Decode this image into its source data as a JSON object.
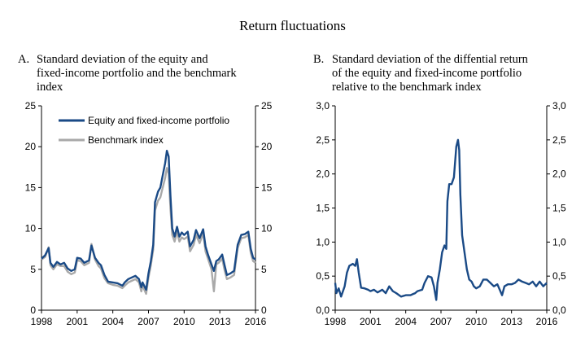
{
  "title": "Return fluctuations",
  "colors": {
    "equity": "#1a4a86",
    "benchmark": "#a9a9a9",
    "axis": "#000000"
  },
  "panels": {
    "a": {
      "letter": "A.",
      "title_lines": [
        "Standard deviation of the equity and",
        "fixed-income portfolio and the benchmark",
        "index"
      ]
    },
    "b": {
      "letter": "B.",
      "title_lines": [
        "Standard deviation of the diffential return",
        "of the equity and fixed-income portfolio",
        "relative to the benchmark index"
      ]
    }
  },
  "chart_data": [
    {
      "type": "line",
      "panel": "A",
      "xlim": [
        1998,
        2016
      ],
      "ylim": [
        0,
        25
      ],
      "x_ticks": [
        "1998",
        "2001",
        "2004",
        "2007",
        "2010",
        "2013",
        "2016"
      ],
      "y_ticks_left": [
        "0",
        "5",
        "10",
        "15",
        "20",
        "25"
      ],
      "y_ticks_right": [
        "0",
        "5",
        "10",
        "15",
        "20",
        "25"
      ],
      "legend": "top-left",
      "series": [
        {
          "name": "Equity and fixed-income portfolio",
          "color": "#1a4a86",
          "points": [
            [
              1998.0,
              6.3
            ],
            [
              1998.3,
              6.7
            ],
            [
              1998.6,
              7.6
            ],
            [
              1998.75,
              5.8
            ],
            [
              1999.0,
              5.3
            ],
            [
              1999.3,
              5.9
            ],
            [
              1999.6,
              5.6
            ],
            [
              1999.9,
              5.8
            ],
            [
              2000.2,
              5.1
            ],
            [
              2000.5,
              4.8
            ],
            [
              2000.8,
              5.0
            ],
            [
              2001.0,
              6.4
            ],
            [
              2001.3,
              6.3
            ],
            [
              2001.6,
              5.8
            ],
            [
              2002.0,
              6.1
            ],
            [
              2002.2,
              7.9
            ],
            [
              2002.5,
              6.4
            ],
            [
              2002.8,
              5.8
            ],
            [
              2003.0,
              5.5
            ],
            [
              2003.3,
              4.3
            ],
            [
              2003.6,
              3.5
            ],
            [
              2004.0,
              3.4
            ],
            [
              2004.4,
              3.3
            ],
            [
              2004.8,
              3.0
            ],
            [
              2005.0,
              3.4
            ],
            [
              2005.3,
              3.8
            ],
            [
              2005.6,
              4.0
            ],
            [
              2005.9,
              4.2
            ],
            [
              2006.2,
              3.8
            ],
            [
              2006.4,
              2.8
            ],
            [
              2006.5,
              3.4
            ],
            [
              2006.8,
              2.5
            ],
            [
              2007.0,
              4.5
            ],
            [
              2007.2,
              6.0
            ],
            [
              2007.4,
              8.0
            ],
            [
              2007.55,
              13.2
            ],
            [
              2007.8,
              14.5
            ],
            [
              2008.0,
              15.0
            ],
            [
              2008.2,
              16.5
            ],
            [
              2008.4,
              18.0
            ],
            [
              2008.55,
              19.5
            ],
            [
              2008.7,
              18.8
            ],
            [
              2008.85,
              14.0
            ],
            [
              2009.0,
              10.0
            ],
            [
              2009.2,
              9.0
            ],
            [
              2009.4,
              10.2
            ],
            [
              2009.6,
              9.0
            ],
            [
              2009.8,
              9.5
            ],
            [
              2010.0,
              9.2
            ],
            [
              2010.3,
              9.6
            ],
            [
              2010.5,
              7.8
            ],
            [
              2010.8,
              8.6
            ],
            [
              2011.0,
              9.8
            ],
            [
              2011.3,
              8.8
            ],
            [
              2011.6,
              9.9
            ],
            [
              2011.8,
              7.8
            ],
            [
              2012.0,
              6.8
            ],
            [
              2012.3,
              5.6
            ],
            [
              2012.5,
              4.8
            ],
            [
              2012.7,
              6.0
            ],
            [
              2012.9,
              6.2
            ],
            [
              2013.2,
              6.8
            ],
            [
              2013.4,
              5.5
            ],
            [
              2013.6,
              4.3
            ],
            [
              2013.9,
              4.5
            ],
            [
              2014.2,
              4.8
            ],
            [
              2014.5,
              8.0
            ],
            [
              2014.8,
              9.2
            ],
            [
              2015.1,
              9.3
            ],
            [
              2015.4,
              9.6
            ],
            [
              2015.6,
              7.5
            ],
            [
              2015.8,
              6.4
            ],
            [
              2016.0,
              6.2
            ]
          ]
        },
        {
          "name": "Benchmark index",
          "color": "#a9a9a9",
          "points": [
            [
              1998.0,
              6.2
            ],
            [
              1998.3,
              6.5
            ],
            [
              1998.6,
              7.7
            ],
            [
              1998.75,
              5.5
            ],
            [
              1999.0,
              5.0
            ],
            [
              1999.3,
              5.6
            ],
            [
              1999.6,
              5.4
            ],
            [
              1999.9,
              5.4
            ],
            [
              2000.2,
              4.7
            ],
            [
              2000.5,
              4.4
            ],
            [
              2000.8,
              4.6
            ],
            [
              2001.0,
              6.1
            ],
            [
              2001.3,
              6.0
            ],
            [
              2001.6,
              5.5
            ],
            [
              2002.0,
              5.8
            ],
            [
              2002.2,
              8.1
            ],
            [
              2002.5,
              6.2
            ],
            [
              2002.8,
              5.4
            ],
            [
              2003.0,
              5.1
            ],
            [
              2003.3,
              3.9
            ],
            [
              2003.6,
              3.3
            ],
            [
              2004.0,
              3.1
            ],
            [
              2004.4,
              3.0
            ],
            [
              2004.8,
              2.7
            ],
            [
              2005.0,
              3.0
            ],
            [
              2005.3,
              3.4
            ],
            [
              2005.6,
              3.6
            ],
            [
              2005.9,
              3.8
            ],
            [
              2006.2,
              3.4
            ],
            [
              2006.4,
              2.3
            ],
            [
              2006.5,
              3.0
            ],
            [
              2006.8,
              2.0
            ],
            [
              2007.0,
              4.0
            ],
            [
              2007.2,
              5.5
            ],
            [
              2007.4,
              7.4
            ],
            [
              2007.55,
              12.2
            ],
            [
              2007.8,
              13.4
            ],
            [
              2008.0,
              13.8
            ],
            [
              2008.2,
              15.0
            ],
            [
              2008.4,
              16.2
            ],
            [
              2008.55,
              17.4
            ],
            [
              2008.7,
              16.7
            ],
            [
              2008.85,
              12.4
            ],
            [
              2009.0,
              9.2
            ],
            [
              2009.2,
              8.4
            ],
            [
              2009.4,
              9.6
            ],
            [
              2009.6,
              8.4
            ],
            [
              2009.8,
              8.9
            ],
            [
              2010.0,
              8.7
            ],
            [
              2010.3,
              9.0
            ],
            [
              2010.5,
              7.2
            ],
            [
              2010.8,
              8.0
            ],
            [
              2011.0,
              9.2
            ],
            [
              2011.3,
              8.2
            ],
            [
              2011.6,
              9.4
            ],
            [
              2011.8,
              7.2
            ],
            [
              2012.0,
              6.3
            ],
            [
              2012.3,
              5.0
            ],
            [
              2012.5,
              2.3
            ],
            [
              2012.7,
              5.6
            ],
            [
              2012.9,
              5.8
            ],
            [
              2013.2,
              6.3
            ],
            [
              2013.4,
              4.9
            ],
            [
              2013.6,
              3.8
            ],
            [
              2013.9,
              4.0
            ],
            [
              2014.2,
              4.3
            ],
            [
              2014.5,
              7.6
            ],
            [
              2014.8,
              8.8
            ],
            [
              2015.1,
              8.9
            ],
            [
              2015.4,
              9.2
            ],
            [
              2015.6,
              7.0
            ],
            [
              2015.8,
              6.0
            ],
            [
              2016.0,
              5.8
            ]
          ]
        }
      ]
    },
    {
      "type": "line",
      "panel": "B",
      "xlim": [
        1998,
        2016
      ],
      "ylim": [
        0,
        3
      ],
      "x_ticks": [
        "1998",
        "2001",
        "2004",
        "2007",
        "2010",
        "2013",
        "2016"
      ],
      "y_ticks_left": [
        "0,0",
        "0,5",
        "1,0",
        "1,5",
        "2,0",
        "2,5",
        "3,0"
      ],
      "y_ticks_right": [
        "0,0",
        "0,5",
        "1,0",
        "1,5",
        "2,0",
        "2,5",
        "3,0"
      ],
      "series": [
        {
          "color": "#1a4a86",
          "points": [
            [
              1998.0,
              0.4
            ],
            [
              1998.1,
              0.25
            ],
            [
              1998.3,
              0.32
            ],
            [
              1998.5,
              0.2
            ],
            [
              1998.8,
              0.35
            ],
            [
              1999.0,
              0.55
            ],
            [
              1999.2,
              0.65
            ],
            [
              1999.5,
              0.68
            ],
            [
              1999.7,
              0.65
            ],
            [
              1999.85,
              0.75
            ],
            [
              2000.0,
              0.55
            ],
            [
              2000.2,
              0.33
            ],
            [
              2000.5,
              0.32
            ],
            [
              2000.8,
              0.3
            ],
            [
              2001.0,
              0.28
            ],
            [
              2001.3,
              0.3
            ],
            [
              2001.6,
              0.26
            ],
            [
              2002.0,
              0.3
            ],
            [
              2002.3,
              0.25
            ],
            [
              2002.6,
              0.35
            ],
            [
              2002.9,
              0.28
            ],
            [
              2003.2,
              0.25
            ],
            [
              2003.6,
              0.2
            ],
            [
              2004.0,
              0.22
            ],
            [
              2004.4,
              0.22
            ],
            [
              2004.8,
              0.25
            ],
            [
              2005.0,
              0.28
            ],
            [
              2005.4,
              0.3
            ],
            [
              2005.6,
              0.4
            ],
            [
              2005.9,
              0.5
            ],
            [
              2006.2,
              0.48
            ],
            [
              2006.4,
              0.35
            ],
            [
              2006.6,
              0.15
            ],
            [
              2006.7,
              0.4
            ],
            [
              2006.9,
              0.6
            ],
            [
              2007.1,
              0.85
            ],
            [
              2007.3,
              0.95
            ],
            [
              2007.45,
              0.9
            ],
            [
              2007.55,
              1.6
            ],
            [
              2007.7,
              1.85
            ],
            [
              2007.9,
              1.85
            ],
            [
              2008.1,
              1.95
            ],
            [
              2008.3,
              2.4
            ],
            [
              2008.45,
              2.5
            ],
            [
              2008.55,
              2.35
            ],
            [
              2008.65,
              1.7
            ],
            [
              2008.8,
              1.1
            ],
            [
              2009.0,
              0.85
            ],
            [
              2009.2,
              0.6
            ],
            [
              2009.4,
              0.45
            ],
            [
              2009.6,
              0.42
            ],
            [
              2009.8,
              0.35
            ],
            [
              2010.0,
              0.32
            ],
            [
              2010.3,
              0.35
            ],
            [
              2010.6,
              0.45
            ],
            [
              2010.9,
              0.45
            ],
            [
              2011.2,
              0.4
            ],
            [
              2011.5,
              0.35
            ],
            [
              2011.8,
              0.38
            ],
            [
              2012.0,
              0.3
            ],
            [
              2012.2,
              0.22
            ],
            [
              2012.4,
              0.35
            ],
            [
              2012.7,
              0.38
            ],
            [
              2013.0,
              0.38
            ],
            [
              2013.3,
              0.4
            ],
            [
              2013.6,
              0.45
            ],
            [
              2013.9,
              0.42
            ],
            [
              2014.2,
              0.4
            ],
            [
              2014.5,
              0.38
            ],
            [
              2014.8,
              0.42
            ],
            [
              2015.1,
              0.35
            ],
            [
              2015.4,
              0.42
            ],
            [
              2015.7,
              0.35
            ],
            [
              2016.0,
              0.4
            ]
          ]
        }
      ]
    }
  ]
}
